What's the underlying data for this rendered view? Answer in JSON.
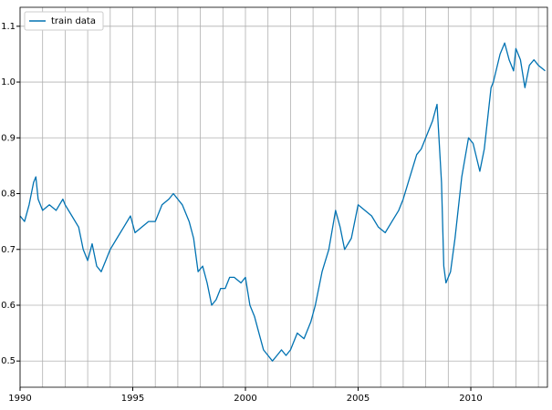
{
  "chart_data": {
    "type": "line",
    "x": [
      1990.0,
      1990.2,
      1990.4,
      1990.6,
      1990.7,
      1990.8,
      1991.0,
      1991.3,
      1991.6,
      1991.9,
      1992.0,
      1992.3,
      1992.6,
      1992.8,
      1993.0,
      1993.2,
      1993.4,
      1993.6,
      1993.8,
      1994.0,
      1994.3,
      1994.6,
      1994.9,
      1995.1,
      1995.4,
      1995.7,
      1996.0,
      1996.3,
      1996.6,
      1996.8,
      1997.0,
      1997.2,
      1997.5,
      1997.7,
      1997.9,
      1998.1,
      1998.3,
      1998.5,
      1998.7,
      1998.9,
      1999.1,
      1999.3,
      1999.5,
      1999.8,
      2000.0,
      2000.2,
      2000.4,
      2000.6,
      2000.8,
      2001.0,
      2001.2,
      2001.4,
      2001.6,
      2001.8,
      2002.0,
      2002.3,
      2002.6,
      2002.9,
      2003.1,
      2003.4,
      2003.7,
      2004.0,
      2004.2,
      2004.4,
      2004.7,
      2005.0,
      2005.3,
      2005.6,
      2005.9,
      2006.2,
      2006.5,
      2006.8,
      2007.0,
      2007.3,
      2007.6,
      2007.8,
      2008.0,
      2008.3,
      2008.5,
      2008.7,
      2008.8,
      2008.9,
      2009.1,
      2009.3,
      2009.6,
      2009.9,
      2010.1,
      2010.4,
      2010.6,
      2010.9,
      2011.0,
      2011.3,
      2011.5,
      2011.7,
      2011.9,
      2012.0,
      2012.2,
      2012.4,
      2012.6,
      2012.8,
      2013.0,
      2013.3
    ],
    "series": [
      {
        "name": "train data",
        "color": "#0072b2",
        "values": [
          0.76,
          0.75,
          0.78,
          0.82,
          0.83,
          0.79,
          0.77,
          0.78,
          0.77,
          0.79,
          0.78,
          0.76,
          0.74,
          0.7,
          0.68,
          0.71,
          0.67,
          0.66,
          0.68,
          0.7,
          0.72,
          0.74,
          0.76,
          0.73,
          0.74,
          0.75,
          0.75,
          0.78,
          0.79,
          0.8,
          0.79,
          0.78,
          0.75,
          0.72,
          0.66,
          0.67,
          0.64,
          0.6,
          0.61,
          0.63,
          0.63,
          0.65,
          0.65,
          0.64,
          0.65,
          0.6,
          0.58,
          0.55,
          0.52,
          0.51,
          0.5,
          0.51,
          0.52,
          0.51,
          0.52,
          0.55,
          0.54,
          0.57,
          0.6,
          0.66,
          0.7,
          0.77,
          0.74,
          0.7,
          0.72,
          0.78,
          0.77,
          0.76,
          0.74,
          0.73,
          0.75,
          0.77,
          0.79,
          0.83,
          0.87,
          0.88,
          0.9,
          0.93,
          0.96,
          0.82,
          0.67,
          0.64,
          0.66,
          0.72,
          0.83,
          0.9,
          0.89,
          0.84,
          0.88,
          0.99,
          1.0,
          1.05,
          1.07,
          1.04,
          1.02,
          1.06,
          1.04,
          0.99,
          1.03,
          1.04,
          1.03,
          1.02
        ]
      }
    ],
    "xlim": [
      1990,
      2013.4
    ],
    "ylim": [
      0.453,
      1.134
    ],
    "xticks": [
      1990,
      1995,
      2000,
      2005,
      2010
    ],
    "xminor_ticks": [
      1991,
      1992,
      1993,
      1994,
      1996,
      1997,
      1998,
      1999,
      2001,
      2002,
      2003,
      2004,
      2006,
      2007,
      2008,
      2009,
      2011,
      2012,
      2013
    ],
    "yticks": [
      0.5,
      0.6,
      0.7,
      0.8,
      0.9,
      {
        "value": 1.0,
        "label": "1.0"
      },
      1.1
    ],
    "grid": true,
    "legend": "upper left"
  }
}
